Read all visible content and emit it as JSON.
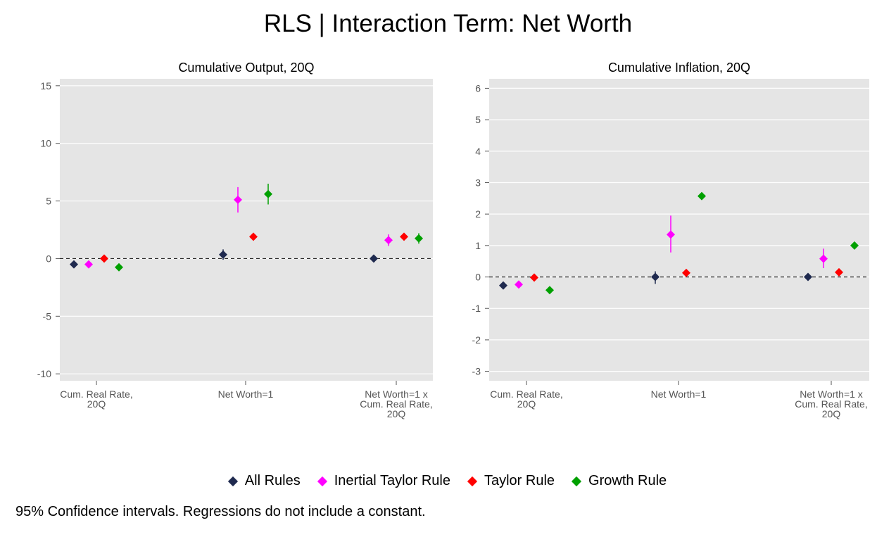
{
  "figure": {
    "title": "RLS | Interaction Term: Net Worth",
    "footnote": "95% Confidence intervals. Regressions do not include a constant."
  },
  "legend": [
    {
      "name": "All Rules",
      "color": "#1f2a4f"
    },
    {
      "name": "Inertial Taylor Rule",
      "color": "#ff00ff"
    },
    {
      "name": "Taylor Rule",
      "color": "#ff0000"
    },
    {
      "name": "Growth Rule",
      "color": "#00a000"
    }
  ],
  "chart_data": [
    {
      "type": "scatter",
      "title": "Cumulative Output, 20Q",
      "categories": [
        [
          "Cum. Real Rate,",
          "20Q"
        ],
        [
          "Net Worth=1"
        ],
        [
          "Net Worth=1 x",
          "Cum. Real Rate,",
          "20Q"
        ]
      ],
      "yticks": [
        -10,
        -5,
        0,
        5,
        10,
        15
      ],
      "ylim": [
        -10.6,
        15.6
      ],
      "reference_line": 0,
      "grid": true,
      "series": [
        {
          "name": "All Rules",
          "color": "#1f2a4f",
          "values": [
            -0.5,
            0.35,
            0.0
          ],
          "ci": [
            [
              -0.65,
              -0.35
            ],
            [
              -0.1,
              0.8
            ],
            [
              -0.15,
              0.15
            ]
          ]
        },
        {
          "name": "Inertial Taylor Rule",
          "color": "#ff00ff",
          "values": [
            -0.5,
            5.1,
            1.6
          ],
          "ci": [
            [
              -0.65,
              -0.35
            ],
            [
              4.0,
              6.2
            ],
            [
              1.1,
              2.1
            ]
          ]
        },
        {
          "name": "Taylor Rule",
          "color": "#ff0000",
          "values": [
            0.0,
            1.9,
            1.9
          ],
          "ci": [
            [
              -0.1,
              0.1
            ],
            [
              1.75,
              2.05
            ],
            [
              1.6,
              2.2
            ]
          ]
        },
        {
          "name": "Growth Rule",
          "color": "#00a000",
          "values": [
            -0.75,
            5.6,
            1.75
          ],
          "ci": [
            [
              -0.9,
              -0.6
            ],
            [
              4.7,
              6.5
            ],
            [
              1.3,
              2.2
            ]
          ]
        }
      ]
    },
    {
      "type": "scatter",
      "title": "Cumulative Inflation, 20Q",
      "categories": [
        [
          "Cum. Real Rate,",
          "20Q"
        ],
        [
          "Net Worth=1"
        ],
        [
          "Net Worth=1 x",
          "Cum. Real Rate,",
          "20Q"
        ]
      ],
      "yticks": [
        -3,
        -2,
        -1,
        0,
        1,
        2,
        3,
        4,
        5,
        6
      ],
      "ylim": [
        -3.3,
        6.3
      ],
      "reference_line": 0,
      "grid": true,
      "series": [
        {
          "name": "All Rules",
          "color": "#1f2a4f",
          "values": [
            -0.27,
            0.0,
            0.0
          ],
          "ci": [
            [
              -0.32,
              -0.22
            ],
            [
              -0.22,
              0.18
            ],
            [
              -0.08,
              0.08
            ]
          ]
        },
        {
          "name": "Inertial Taylor Rule",
          "color": "#ff00ff",
          "values": [
            -0.24,
            1.35,
            0.58
          ],
          "ci": [
            [
              -0.3,
              -0.18
            ],
            [
              0.78,
              1.95
            ],
            [
              0.28,
              0.9
            ]
          ]
        },
        {
          "name": "Taylor Rule",
          "color": "#ff0000",
          "values": [
            -0.02,
            0.13,
            0.15
          ],
          "ci": [
            [
              -0.06,
              0.02
            ],
            [
              0.08,
              0.18
            ],
            [
              0.1,
              0.2
            ]
          ]
        },
        {
          "name": "Growth Rule",
          "color": "#00a000",
          "values": [
            -0.42,
            2.57,
            1.0
          ],
          "ci": [
            [
              -0.47,
              -0.37
            ],
            [
              2.5,
              2.64
            ],
            [
              0.94,
              1.06
            ]
          ]
        }
      ]
    }
  ]
}
